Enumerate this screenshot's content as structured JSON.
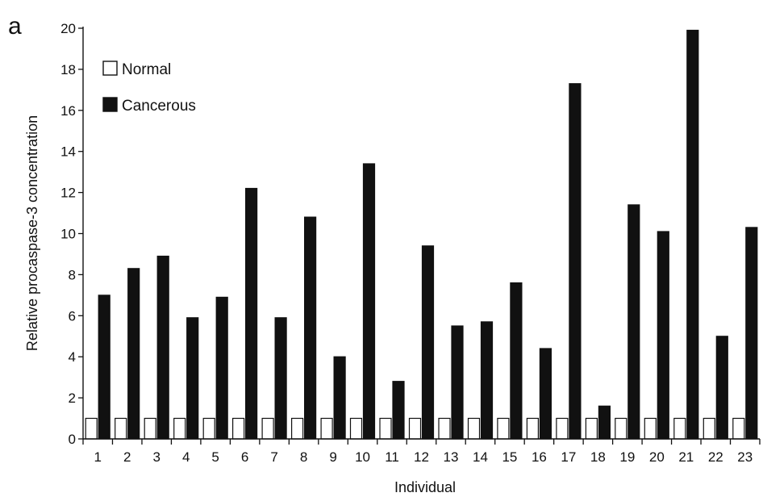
{
  "panel_label": "a",
  "chart_data": {
    "type": "bar",
    "title": "",
    "xlabel": "Individual",
    "ylabel": "Relative procaspase-3 concentration",
    "ylim": [
      0,
      20
    ],
    "yticks": [
      0,
      2,
      4,
      6,
      8,
      10,
      12,
      14,
      16,
      18,
      20
    ],
    "categories": [
      "1",
      "2",
      "3",
      "4",
      "5",
      "6",
      "7",
      "8",
      "9",
      "10",
      "11",
      "12",
      "13",
      "14",
      "15",
      "16",
      "17",
      "18",
      "19",
      "20",
      "21",
      "22",
      "23"
    ],
    "legend_position": "top-left",
    "series": [
      {
        "name": "Normal",
        "color": "#ffffff",
        "stroke": "#111111",
        "values": [
          1,
          1,
          1,
          1,
          1,
          1,
          1,
          1,
          1,
          1,
          1,
          1,
          1,
          1,
          1,
          1,
          1,
          1,
          1,
          1,
          1,
          1,
          1
        ]
      },
      {
        "name": "Cancerous",
        "color": "#111111",
        "stroke": "#111111",
        "values": [
          7.0,
          8.3,
          8.9,
          5.9,
          6.9,
          12.2,
          5.9,
          10.8,
          4.0,
          13.4,
          2.8,
          9.4,
          5.5,
          5.7,
          7.6,
          4.4,
          17.3,
          1.6,
          11.4,
          10.1,
          19.9,
          5.0,
          10.3
        ]
      }
    ]
  }
}
